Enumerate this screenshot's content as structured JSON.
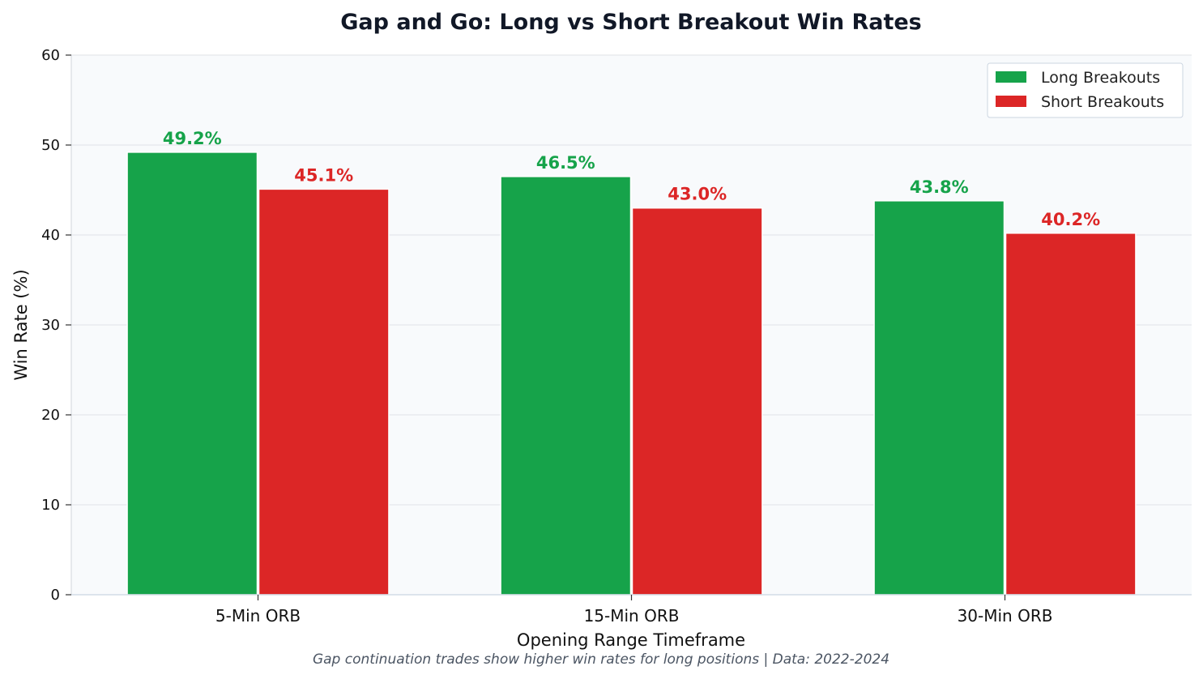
{
  "chart_data": {
    "type": "bar",
    "title": "Gap and Go: Long vs Short Breakout Win Rates",
    "xlabel": "Opening Range Timeframe",
    "ylabel": "Win Rate (%)",
    "categories": [
      "5-Min ORB",
      "15-Min ORB",
      "30-Min ORB"
    ],
    "series": [
      {
        "name": "Long Breakouts",
        "color": "#16a34a",
        "values": [
          49.2,
          46.5,
          43.8
        ],
        "labels": [
          "49.2%",
          "46.5%",
          "43.8%"
        ]
      },
      {
        "name": "Short Breakouts",
        "color": "#dc2626",
        "values": [
          45.1,
          43.0,
          40.2
        ],
        "labels": [
          "45.1%",
          "43.0%",
          "40.2%"
        ]
      }
    ],
    "ylim": [
      0,
      60
    ],
    "yticks": [
      "0",
      "10",
      "20",
      "30",
      "40",
      "50",
      "60"
    ],
    "grid": true,
    "legend_position": "top-right",
    "footnote": "Gap continuation trades show higher win rates for long positions | Data: 2022-2024"
  }
}
